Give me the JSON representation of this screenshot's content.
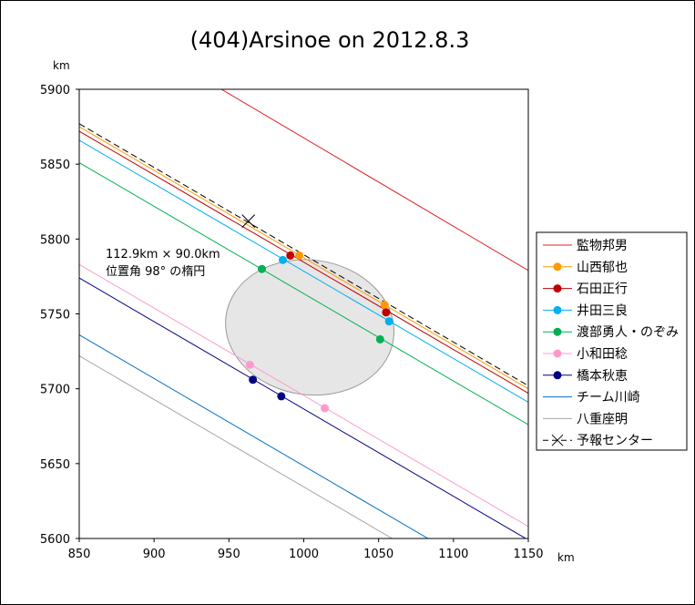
{
  "chart_data": {
    "type": "scatter",
    "title": "(404)Arsinoe on 2012.8.3",
    "xlabel": "km",
    "ylabel": "km",
    "xlim": [
      850,
      1150
    ],
    "ylim": [
      5600,
      5900
    ],
    "xticks": [
      850,
      900,
      950,
      1000,
      1050,
      1100,
      1150
    ],
    "yticks": [
      5600,
      5650,
      5700,
      5750,
      5800,
      5850,
      5900
    ],
    "grid": false,
    "legend_position": "right",
    "annotation_lines": [
      "112.9km × 90.0km",
      "位置角 98° の楕円"
    ],
    "ellipse": {
      "center": [
        1004,
        5741
      ],
      "major_axis_km": 112.9,
      "minor_axis_km": 90.0,
      "position_angle_deg": 98
    },
    "series": [
      {
        "name": "監物邦男",
        "color": "#e02020",
        "line": [
          [
            945,
            5900
          ],
          [
            1150,
            5779
          ]
        ],
        "points": []
      },
      {
        "name": "山西郁也",
        "color": "#ff9900",
        "line": [
          [
            850,
            5875
          ],
          [
            1150,
            5700
          ]
        ],
        "points": [
          [
            997,
            5789
          ],
          [
            1054,
            5756
          ]
        ]
      },
      {
        "name": "石田正行",
        "color": "#c00000",
        "line": [
          [
            850,
            5872
          ],
          [
            1150,
            5697
          ]
        ],
        "points": [
          [
            991,
            5789
          ],
          [
            1055,
            5751
          ]
        ]
      },
      {
        "name": "井田三良",
        "color": "#00b0f0",
        "line": [
          [
            850,
            5866
          ],
          [
            1150,
            5691
          ]
        ],
        "points": [
          [
            986,
            5786
          ],
          [
            1057,
            5745
          ]
        ]
      },
      {
        "name": "渡部勇人・のぞみ",
        "color": "#00b050",
        "line": [
          [
            850,
            5851
          ],
          [
            1150,
            5676
          ]
        ],
        "points": [
          [
            972,
            5780
          ],
          [
            1051,
            5733
          ]
        ]
      },
      {
        "name": "小和田稔",
        "color": "#ff99cc",
        "line": [
          [
            850,
            5783
          ],
          [
            1150,
            5608
          ]
        ],
        "points": [
          [
            964,
            5716
          ],
          [
            1014,
            5687
          ]
        ]
      },
      {
        "name": "橋本秋恵",
        "color": "#000080",
        "line": [
          [
            850,
            5774
          ],
          [
            1150,
            5599
          ]
        ],
        "points": [
          [
            966,
            5706
          ],
          [
            985,
            5695
          ]
        ]
      },
      {
        "name": "チーム川崎",
        "color": "#0070c0",
        "line": [
          [
            850,
            5736
          ],
          [
            1083,
            5600
          ]
        ],
        "points": []
      },
      {
        "name": "八重座明",
        "color": "#a6a6a6",
        "line": [
          [
            850,
            5722
          ],
          [
            1059,
            5600
          ]
        ],
        "points": []
      },
      {
        "name": "予報センター",
        "color": "#000000",
        "dashed": true,
        "line": [
          [
            850,
            5877
          ],
          [
            1150,
            5702
          ]
        ],
        "points": [],
        "marker": [
          963,
          5812
        ]
      }
    ]
  }
}
